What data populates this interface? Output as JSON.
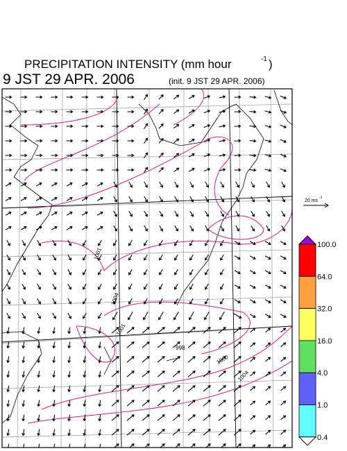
{
  "header": {
    "title": "PRECIPITATION INTENSITY (mm hour",
    "title_sup": "-1",
    "title_end": ")",
    "valid_time": "9 JST 29 APR. 2006",
    "init_time": "(init. 9 JST 29 APR. 2006)"
  },
  "wind_scale": {
    "label": "20 ms",
    "sup": "-1"
  },
  "colorbar": {
    "labels": [
      "100.0",
      "64.0",
      "32.0",
      "16.0",
      "4.0",
      "1.0",
      "0.4"
    ],
    "colors": [
      "#ff0000",
      "#ffa040",
      "#ffff60",
      "#60e060",
      "#6060ff",
      "#60ffff"
    ],
    "over_color": "#a000e0",
    "under_color": "#ffffff"
  },
  "contour_labels": [
    {
      "text": "1001"
    },
    {
      "text": "1004"
    },
    {
      "text": "1001"
    },
    {
      "text": "998"
    },
    {
      "text": "1000"
    },
    {
      "text": "1004"
    }
  ]
}
